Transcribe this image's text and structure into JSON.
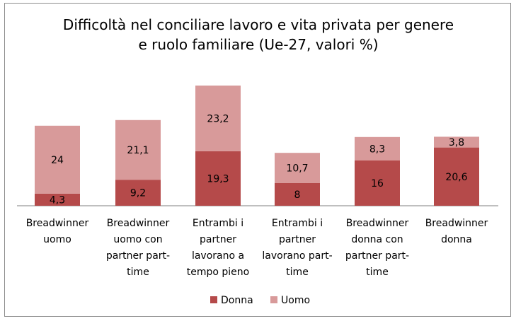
{
  "chart_data": {
    "type": "bar",
    "stacked": true,
    "title_lines": [
      "Difficoltà nel conciliare lavoro e vita privata per genere",
      "e ruolo familiare (Ue-27, valori %)"
    ],
    "categories": [
      [
        "Breadwinner",
        "uomo"
      ],
      [
        "Breadwinner",
        "uomo con",
        "partner part-",
        "time"
      ],
      [
        "Entrambi i",
        "partner",
        "lavorano a",
        "tempo pieno"
      ],
      [
        "Entrambi i",
        "partner",
        "lavorano part-",
        "time"
      ],
      [
        "Breadwinner",
        "donna con",
        "partner part-",
        "time"
      ],
      [
        "Breadwinner",
        "donna"
      ]
    ],
    "series": [
      {
        "name": "Donna",
        "color": "#b54a4a",
        "values": [
          4.3,
          9.2,
          19.3,
          8,
          16,
          20.6
        ],
        "labels": [
          "4,3",
          "9,2",
          "19,3",
          "8",
          "16",
          "20,6"
        ]
      },
      {
        "name": "Uomo",
        "color": "#d89a9a",
        "values": [
          24,
          21.1,
          23.2,
          10.7,
          8.3,
          3.8
        ],
        "labels": [
          "24",
          "21,1",
          "23,2",
          "10,7",
          "8,3",
          "3,8"
        ]
      }
    ],
    "legend_position": "bottom",
    "grid": false
  }
}
